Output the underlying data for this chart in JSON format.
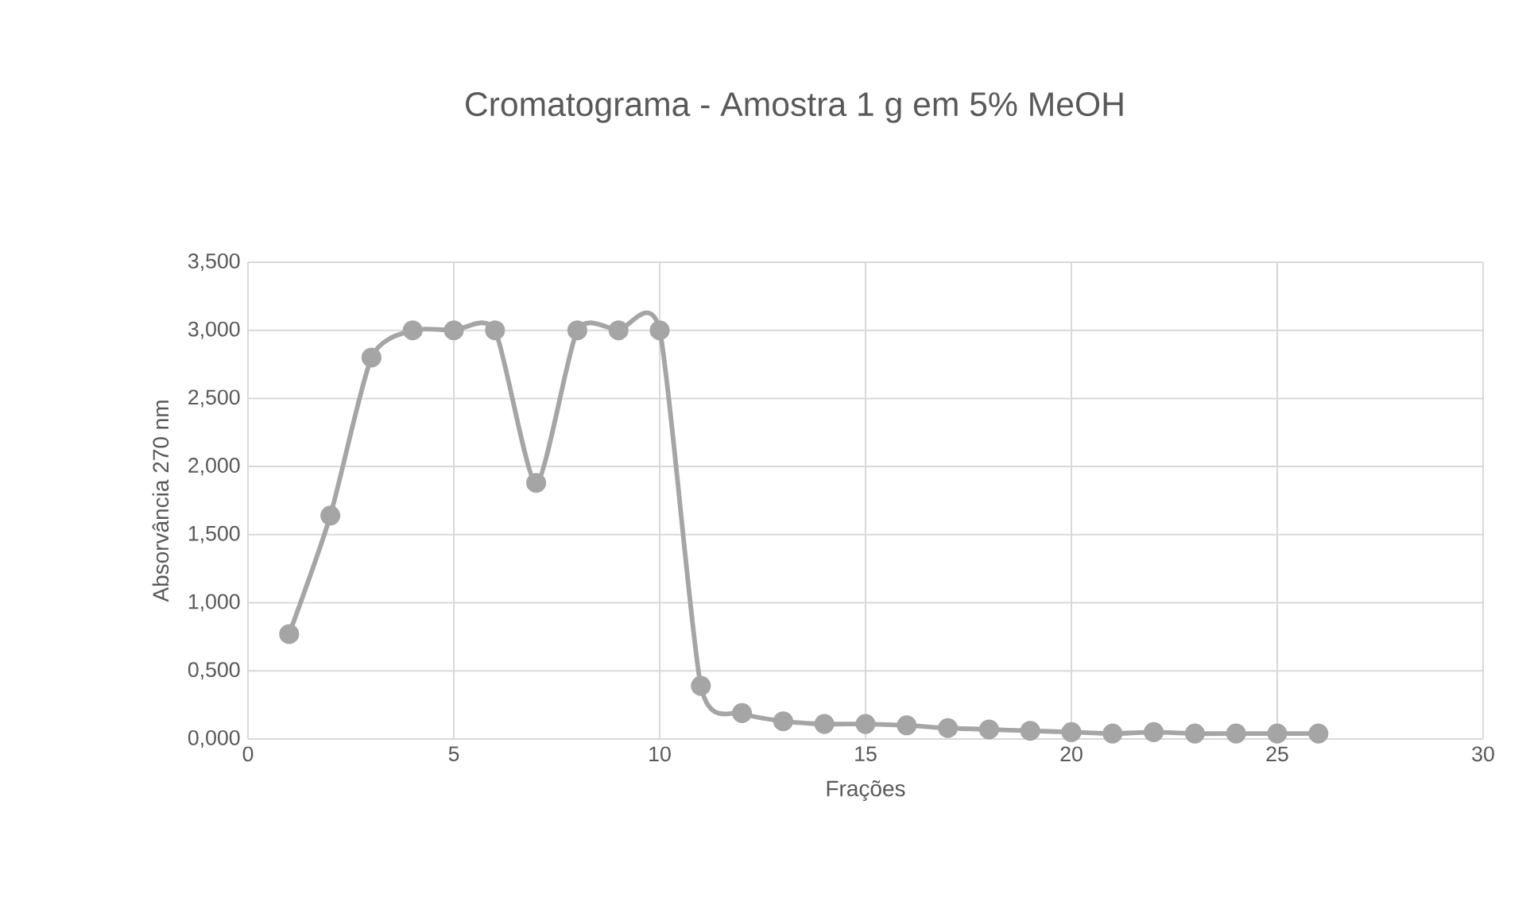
{
  "chart_data": {
    "type": "line",
    "title": "Cromatograma - Amostra 1 g em 5% MeOH",
    "xlabel": "Frações",
    "ylabel": "Absorvância 270 nm",
    "series": [
      {
        "color": "#a5a5a5",
        "x": [
          1,
          2,
          3,
          4,
          5,
          6,
          7,
          8,
          9,
          10,
          11,
          12,
          13,
          14,
          15,
          16,
          17,
          18,
          19,
          20,
          21,
          22,
          23,
          24,
          25,
          26
        ],
        "values": [
          0.77,
          1.64,
          2.8,
          3.0,
          3.0,
          3.0,
          1.88,
          3.0,
          3.0,
          3.0,
          0.39,
          0.19,
          0.13,
          0.11,
          0.11,
          0.1,
          0.08,
          0.07,
          0.06,
          0.05,
          0.04,
          0.05,
          0.04,
          0.04,
          0.04,
          0.04
        ]
      }
    ],
    "xlim": [
      0,
      30
    ],
    "xticks": [
      0,
      5,
      10,
      15,
      20,
      25,
      30
    ],
    "ylim": [
      0,
      3.5
    ],
    "yticks": [
      {
        "value": 0,
        "label": "0,000"
      },
      {
        "value": 0.5,
        "label": "0,500"
      },
      {
        "value": 1,
        "label": "1,000"
      },
      {
        "value": 1.5,
        "label": "1,500"
      },
      {
        "value": 2,
        "label": "2,000"
      },
      {
        "value": 2.5,
        "label": "2,500"
      },
      {
        "value": 3,
        "label": "3,000"
      },
      {
        "value": 3.5,
        "label": "3,500"
      }
    ],
    "grid": true,
    "marker": "circle",
    "line_style": "solid"
  }
}
